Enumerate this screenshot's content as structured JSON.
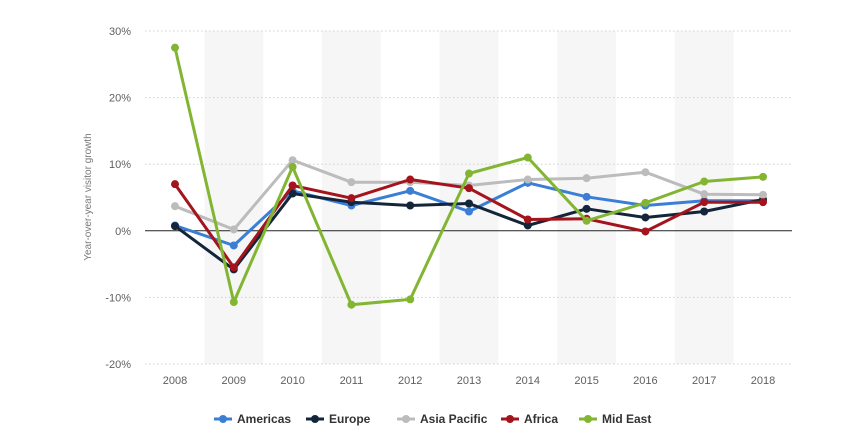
{
  "chart_data": {
    "type": "line",
    "title": "",
    "xlabel": "",
    "ylabel": "Year-over-year visitor growth",
    "categories": [
      "2008",
      "2009",
      "2010",
      "2011",
      "2012",
      "2013",
      "2014",
      "2015",
      "2016",
      "2017",
      "2018"
    ],
    "ylim": [
      -20,
      30
    ],
    "yticks": [
      -20,
      -10,
      0,
      10,
      20,
      30
    ],
    "ytick_labels": [
      "-20%",
      "-10%",
      "0%",
      "10%",
      "20%",
      "30%"
    ],
    "grid": true,
    "legend_position": "bottom",
    "series": [
      {
        "name": "Americas",
        "color": "#3a7fd5",
        "values": [
          0.8,
          -2.2,
          6.0,
          3.8,
          6.0,
          2.9,
          7.2,
          5.1,
          3.8,
          4.5,
          4.5
        ]
      },
      {
        "name": "Europe",
        "color": "#14253a",
        "values": [
          0.7,
          -5.8,
          5.6,
          4.3,
          3.8,
          4.1,
          0.8,
          3.3,
          2.0,
          2.9,
          4.7
        ]
      },
      {
        "name": "Asia Pacific",
        "color": "#bcbcbc",
        "values": [
          3.7,
          0.2,
          10.6,
          7.3,
          7.3,
          6.8,
          7.7,
          7.9,
          8.8,
          5.5,
          5.4
        ]
      },
      {
        "name": "Africa",
        "color": "#a3141d",
        "values": [
          7.0,
          -5.5,
          6.8,
          4.9,
          7.7,
          6.4,
          1.7,
          1.8,
          -0.1,
          4.3,
          4.3
        ]
      },
      {
        "name": "Mid East",
        "color": "#82b632",
        "values": [
          27.5,
          -10.7,
          9.6,
          -11.1,
          -10.3,
          8.6,
          11.0,
          1.5,
          4.2,
          7.4,
          8.1
        ]
      }
    ]
  }
}
